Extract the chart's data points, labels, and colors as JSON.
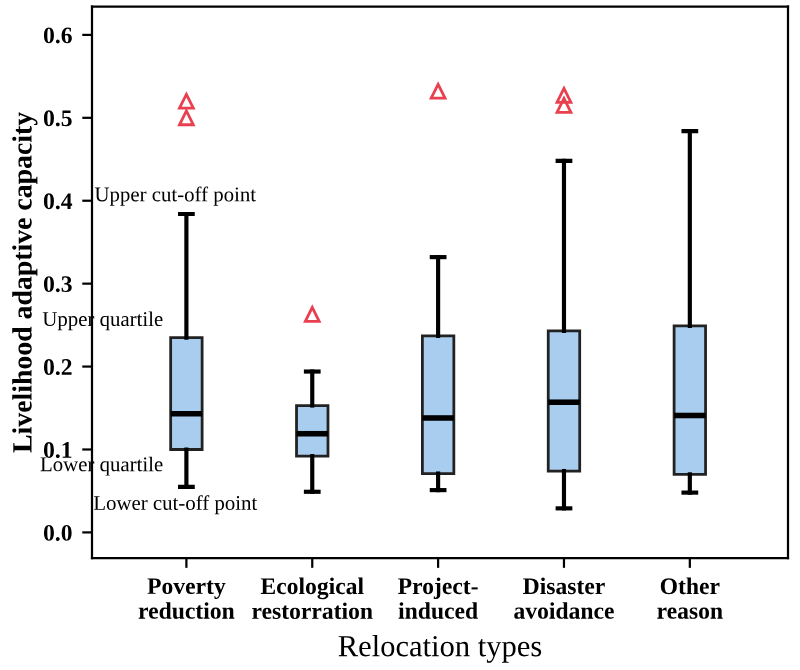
{
  "chart_data": {
    "type": "box",
    "xlabel": "Relocation types",
    "ylabel": "Livelihood adaptive capacity",
    "categories": [
      "Poverty\nreduction",
      "Ecological\nrestorration",
      "Project-\ninduced",
      "Disaster\navoidance",
      "Other\nreason"
    ],
    "color": "#a8cdee",
    "boxes": [
      {
        "low": 0.055,
        "q1": 0.1,
        "median": 0.143,
        "q3": 0.235,
        "high": 0.384,
        "outliers": [
          0.52,
          0.5
        ]
      },
      {
        "low": 0.049,
        "q1": 0.092,
        "median": 0.119,
        "q3": 0.153,
        "high": 0.194,
        "outliers": [
          0.263
        ]
      },
      {
        "low": 0.051,
        "q1": 0.071,
        "median": 0.138,
        "q3": 0.237,
        "high": 0.332,
        "outliers": [
          0.532
        ]
      },
      {
        "low": 0.029,
        "q1": 0.074,
        "median": 0.157,
        "q3": 0.243,
        "high": 0.448,
        "outliers": [
          0.527,
          0.515
        ]
      },
      {
        "low": 0.048,
        "q1": 0.07,
        "median": 0.141,
        "q3": 0.249,
        "high": 0.484
      }
    ],
    "annotations": [
      {
        "text": "Upper cut-off point",
        "x": "Poverty\nreduction",
        "y": 0.384
      },
      {
        "text": "Upper quartile",
        "x": "Poverty\nreduction",
        "y": 0.235
      },
      {
        "text": "Lower quartile",
        "x": "Poverty\nreduction",
        "y": 0.1
      },
      {
        "text": "Lower cut-off point",
        "x": "Poverty\nreduction",
        "y": 0.055
      }
    ],
    "ylim": [
      -0.031,
      0.634
    ],
    "yticks": [
      {
        "value": 0,
        "label": "0.0"
      },
      0.1,
      0.2,
      0.3,
      0.4,
      0.5,
      0.6
    ],
    "grid": false
  }
}
